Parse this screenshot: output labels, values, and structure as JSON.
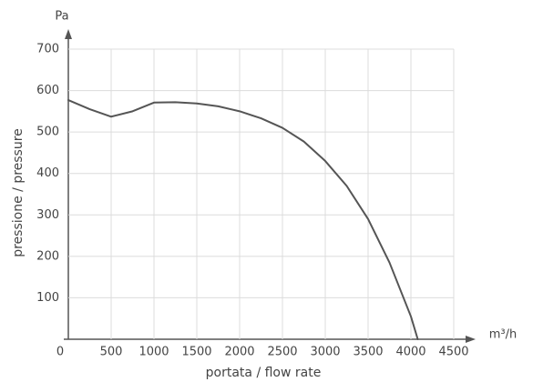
{
  "chart_data": {
    "type": "line",
    "x_label": "portata / flow rate",
    "y_label": "pressione / pressure",
    "x_unit": "m³/h",
    "y_unit": "Pa",
    "x": [
      0,
      250,
      500,
      750,
      1000,
      1250,
      1500,
      1750,
      2000,
      2250,
      2500,
      2750,
      3000,
      3250,
      3500,
      3750,
      4000,
      4080
    ],
    "series": [
      {
        "color": "#555555",
        "values": [
          577,
          555,
          537,
          550,
          571,
          572,
          569,
          562,
          550,
          533,
          510,
          477,
          430,
          370,
          290,
          185,
          55,
          0
        ]
      }
    ],
    "xlim": [
      0,
      4500
    ],
    "ylim": [
      0,
      700
    ],
    "xticks": [
      0,
      500,
      1000,
      1500,
      2000,
      2500,
      3000,
      3500,
      4000,
      4500
    ],
    "yticks": [
      100,
      200,
      300,
      400,
      500,
      600,
      700
    ],
    "grid": true
  }
}
